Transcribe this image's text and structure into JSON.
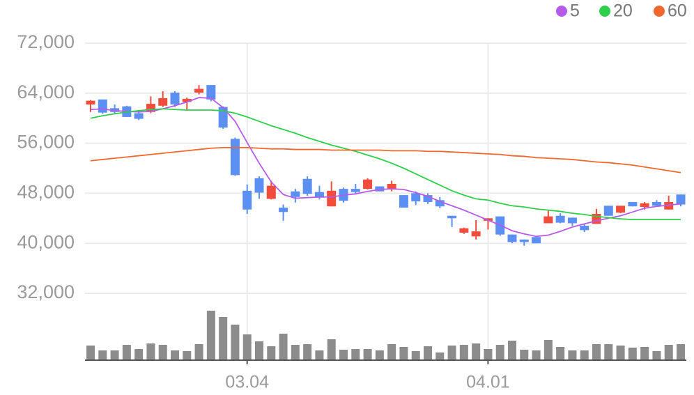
{
  "chart_data": {
    "type": "candlestick",
    "categories": [
      null,
      null,
      null,
      null,
      null,
      null,
      null,
      null,
      null,
      null,
      null,
      null,
      null,
      "03.04",
      null,
      null,
      null,
      null,
      null,
      null,
      null,
      null,
      null,
      null,
      null,
      null,
      null,
      null,
      null,
      null,
      null,
      null,
      null,
      "04.01",
      null,
      null,
      null,
      null,
      null,
      null,
      null,
      null,
      null,
      null,
      null,
      null,
      null,
      null,
      null,
      null
    ],
    "open": [
      62200,
      63000,
      61600,
      61900,
      60800,
      61000,
      62000,
      64100,
      62600,
      64100,
      65300,
      61800,
      56700,
      48400,
      50400,
      47100,
      45700,
      48300,
      50300,
      48200,
      45900,
      48700,
      48700,
      48700,
      49100,
      48700,
      47700,
      48000,
      47700,
      46900,
      44400,
      41700,
      41100,
      43600,
      44300,
      41400,
      40600,
      41000,
      43200,
      44400,
      44100,
      42800,
      43100,
      46000,
      44900,
      46600,
      45800,
      46600,
      45400,
      47800
    ],
    "high": [
      62900,
      63000,
      62200,
      62000,
      61200,
      63500,
      64300,
      64300,
      63300,
      65300,
      65300,
      61900,
      56900,
      49400,
      50700,
      50000,
      46200,
      48700,
      50700,
      49200,
      49900,
      48900,
      49500,
      50400,
      49100,
      50000,
      47700,
      48300,
      48000,
      47400,
      44400,
      42500,
      43700,
      44000,
      44300,
      41400,
      40600,
      41000,
      45200,
      44800,
      44100,
      43000,
      45500,
      46000,
      46000,
      46600,
      46600,
      46900,
      47600,
      47800
    ],
    "low": [
      61000,
      60700,
      60800,
      60200,
      59700,
      60800,
      61800,
      61800,
      61300,
      63800,
      62700,
      58300,
      50800,
      44700,
      47100,
      47000,
      43600,
      46500,
      47600,
      47000,
      45900,
      46500,
      48000,
      48600,
      48300,
      48300,
      45700,
      46100,
      46300,
      45600,
      42600,
      41500,
      40600,
      42200,
      41200,
      40000,
      39600,
      40000,
      43200,
      43200,
      42800,
      41800,
      43100,
      44400,
      44800,
      45900,
      45400,
      46000,
      45400,
      45900
    ],
    "close": [
      62800,
      60900,
      61000,
      60200,
      59900,
      62300,
      63200,
      62200,
      63100,
      64700,
      63000,
      58500,
      50900,
      45400,
      48100,
      49200,
      45000,
      47400,
      47900,
      47300,
      48400,
      46800,
      48200,
      50200,
      48300,
      49500,
      45700,
      46700,
      46600,
      45900,
      44000,
      42400,
      41900,
      44000,
      41400,
      40200,
      40200,
      40000,
      44300,
      43300,
      43200,
      42100,
      44700,
      44400,
      46000,
      45900,
      46400,
      46000,
      46600,
      46200
    ],
    "up_color": "#f24c3d",
    "down_color": "#5b8ff2",
    "volume": [
      21,
      14,
      14,
      22,
      16,
      24,
      22,
      14,
      13,
      23,
      71,
      62,
      51,
      37,
      27,
      20,
      38,
      22,
      23,
      14,
      30,
      15,
      16,
      16,
      14,
      23,
      19,
      13,
      20,
      11,
      21,
      22,
      24,
      16,
      22,
      28,
      15,
      14,
      29,
      19,
      14,
      14,
      23,
      23,
      21,
      18,
      19,
      13,
      22,
      23
    ],
    "volume_color": "#8c8c8c",
    "series": [
      {
        "name": "5",
        "color": "#b65be9",
        "values": [
          61400,
          61500,
          61200,
          61100,
          61000,
          61100,
          61500,
          62000,
          62600,
          63300,
          63200,
          61700,
          59500,
          56100,
          52800,
          49800,
          47800,
          47200,
          47300,
          47400,
          47400,
          47700,
          47900,
          48300,
          48600,
          48700,
          48600,
          48100,
          47500,
          46700,
          46000,
          45300,
          44500,
          43700,
          42900,
          42000,
          41500,
          41100,
          41300,
          41900,
          42600,
          43100,
          43600,
          44000,
          44400,
          45000,
          45600,
          45900,
          46100,
          46300
        ]
      },
      {
        "name": "20",
        "color": "#2ecf4a",
        "values": [
          60000,
          60400,
          60700,
          61000,
          61200,
          61400,
          61500,
          61400,
          61300,
          61300,
          61300,
          61200,
          60800,
          60200,
          59500,
          58800,
          58200,
          57600,
          56900,
          56300,
          55700,
          55200,
          54700,
          54100,
          53500,
          52800,
          52000,
          51100,
          50200,
          49300,
          48400,
          47700,
          47100,
          46900,
          46400,
          46000,
          45800,
          45500,
          45300,
          45100,
          44800,
          44600,
          44300,
          44100,
          43900,
          43800,
          43800,
          43800,
          43800,
          43800
        ]
      },
      {
        "name": "60",
        "color": "#f2672e",
        "values": [
          53200,
          53400,
          53600,
          53800,
          54000,
          54200,
          54400,
          54600,
          54800,
          55000,
          55200,
          55300,
          55300,
          55300,
          55200,
          55100,
          55100,
          55000,
          55000,
          55000,
          54900,
          54900,
          54900,
          54900,
          54900,
          54800,
          54800,
          54800,
          54700,
          54700,
          54600,
          54500,
          54400,
          54300,
          54200,
          54000,
          53900,
          53700,
          53600,
          53500,
          53400,
          53200,
          53000,
          52900,
          52700,
          52500,
          52200,
          51900,
          51600,
          51300
        ]
      }
    ],
    "ylim": [
      32000,
      72000
    ],
    "yticks": [
      {
        "value": 32000,
        "label": "32,000"
      },
      {
        "value": 40000,
        "label": "40,000"
      },
      {
        "value": 48000,
        "label": "48,000"
      },
      {
        "value": 56000,
        "label": "56,000"
      },
      {
        "value": 64000,
        "label": "64,000"
      },
      {
        "value": 72000,
        "label": "72,000"
      }
    ],
    "grid": true
  }
}
